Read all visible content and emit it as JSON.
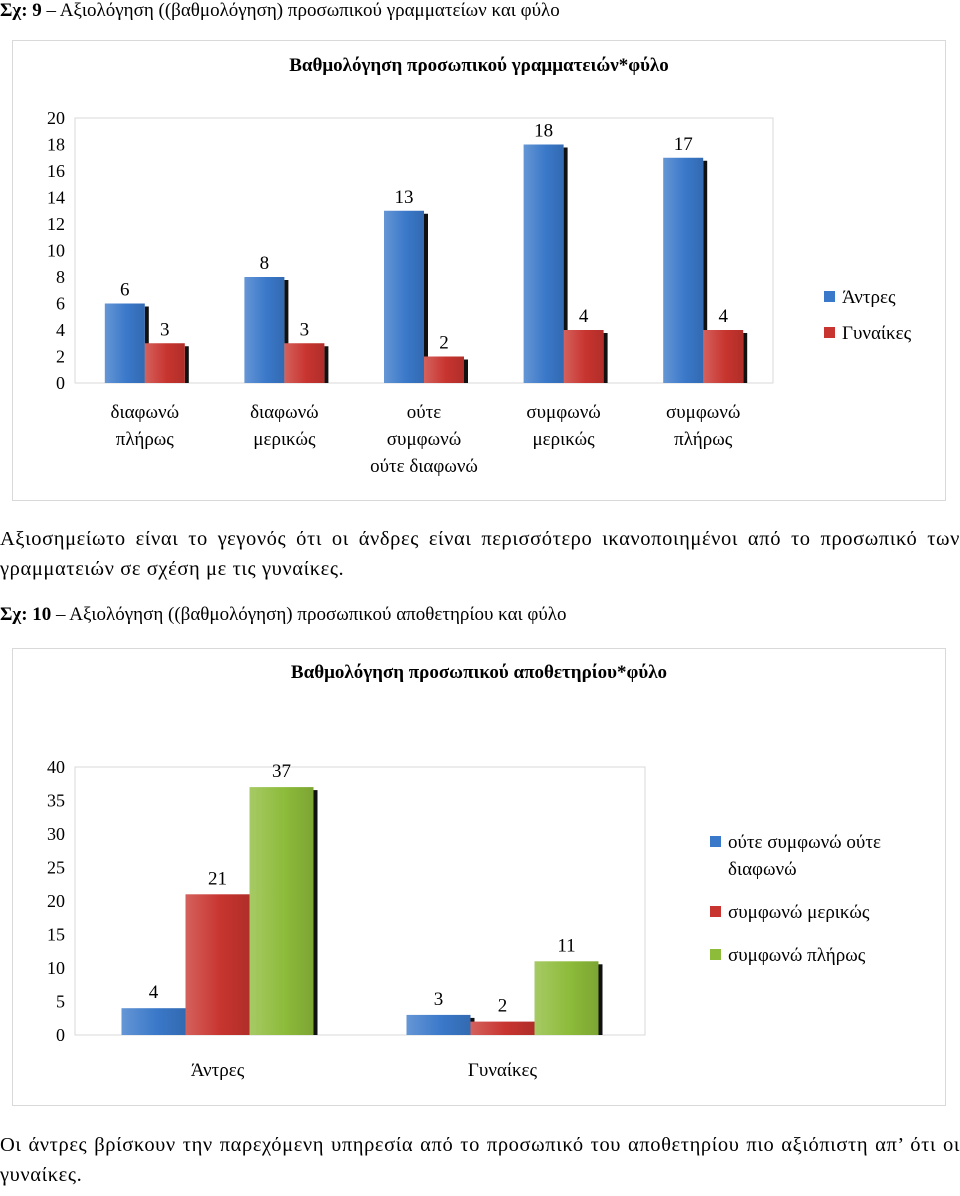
{
  "figure1": {
    "caption_label": "Σχ: 9",
    "caption_text": " – Αξιολόγηση ((βαθμολόγηση) προσωπικού γραμματείων και φύλο"
  },
  "figure2": {
    "caption_label": "Σχ: 10",
    "caption_text": " – Αξιολόγηση ((βαθμολόγηση) προσωπικού αποθετηρίου και φύλο"
  },
  "paragraph1": "Αξιοσημείωτο είναι το γεγονός ότι οι άνδρες είναι περισσότερο ικανοποιημένοι από το προσωπικό των γραμματειών σε σχέση με τις γυναίκες.",
  "paragraph2": "Οι άντρες βρίσκουν την παρεχόμενη υπηρεσία από το προσωπικό του αποθετηρίου πιο αξιόπιστη απ’ ότι οι γυναίκες.",
  "chart_data": [
    {
      "type": "bar",
      "title": "Βαθμολόγηση προσωπικού γραμματειών*φύλο",
      "categories": [
        [
          "διαφωνώ",
          "πλήρως"
        ],
        [
          "διαφωνώ",
          "μερικώς"
        ],
        [
          "ούτε",
          "συμφωνώ",
          "ούτε διαφωνώ"
        ],
        [
          "συμφωνώ",
          "μερικώς"
        ],
        [
          "συμφωνώ",
          "πλήρως"
        ]
      ],
      "series": [
        {
          "name": "Άντρες",
          "values": [
            6,
            8,
            13,
            18,
            17
          ],
          "color": "#3a78c9"
        },
        {
          "name": "Γυναίκες",
          "values": [
            3,
            3,
            2,
            4,
            4
          ],
          "color": "#c8342f"
        }
      ],
      "ylim": [
        0,
        20
      ],
      "yticks": [
        0,
        2,
        4,
        6,
        8,
        10,
        12,
        14,
        16,
        18,
        20
      ],
      "legend": "right"
    },
    {
      "type": "bar",
      "title": "Βαθμολόγηση προσωπικού αποθετηρίου*φύλο",
      "categories": [
        [
          "Άντρες"
        ],
        [
          "Γυναίκες"
        ]
      ],
      "series": [
        {
          "name": "ούτε συμφωνώ ούτε διαφωνώ",
          "legend_lines": [
            "ούτε συμφωνώ ούτε",
            "διαφωνώ"
          ],
          "values": [
            4,
            3
          ],
          "color": "#3a78c9"
        },
        {
          "name": "συμφωνώ μερικώς",
          "legend_lines": [
            "συμφωνώ μερικώς"
          ],
          "values": [
            21,
            2
          ],
          "color": "#c8342f"
        },
        {
          "name": "συμφωνώ πλήρως",
          "legend_lines": [
            "συμφωνώ πλήρως"
          ],
          "values": [
            37,
            11
          ],
          "color": "#8dbb3a"
        }
      ],
      "ylim": [
        0,
        40
      ],
      "yticks": [
        0,
        5,
        10,
        15,
        20,
        25,
        30,
        35,
        40
      ],
      "legend": "right"
    }
  ]
}
